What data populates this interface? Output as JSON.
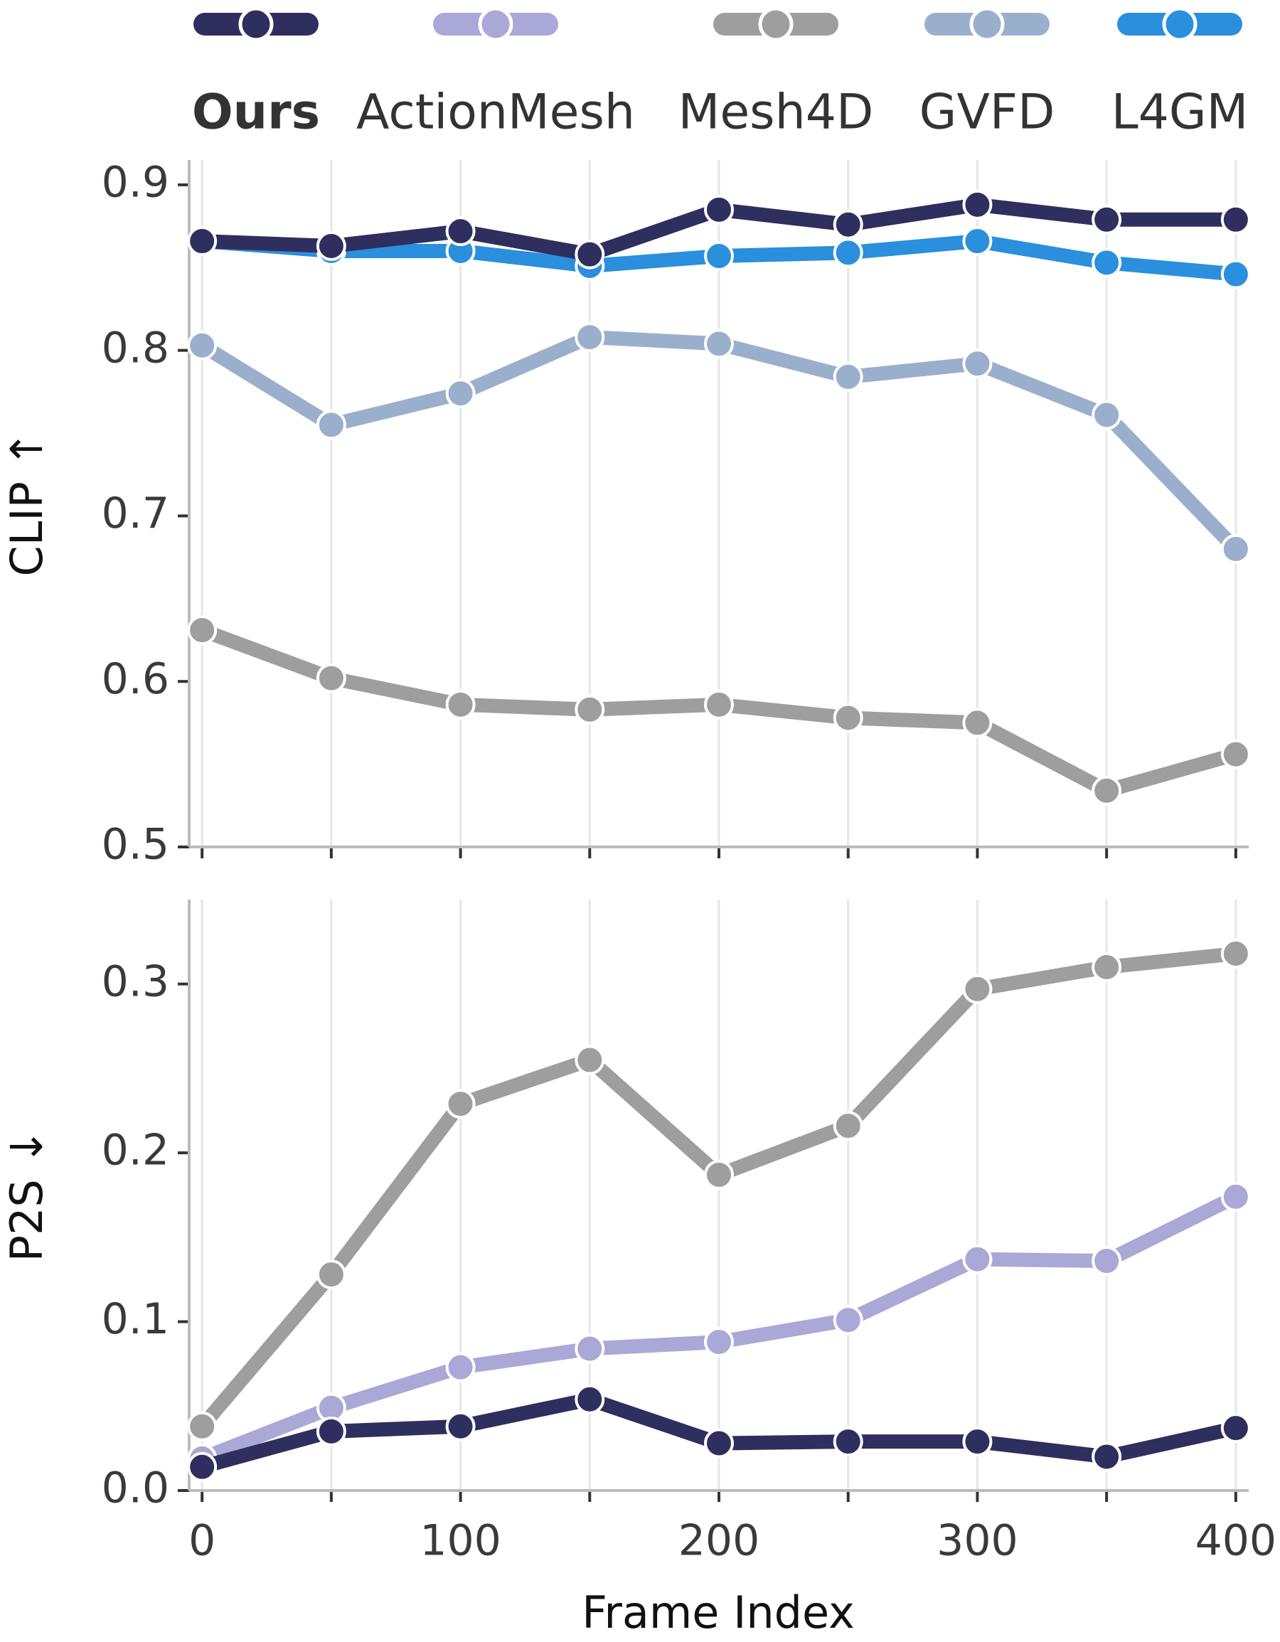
{
  "legend": [
    {
      "name": "Ours",
      "color": "#2e2f5e",
      "bold": true
    },
    {
      "name": "ActionMesh",
      "color": "#a9a8d6",
      "bold": false
    },
    {
      "name": "Mesh4D",
      "color": "#9e9e9e",
      "bold": false
    },
    {
      "name": "GVFD",
      "color": "#9aafcc",
      "bold": false
    },
    {
      "name": "L4GM",
      "color": "#2a8fdc",
      "bold": false
    }
  ],
  "x_label": "Frame Index",
  "chart_data": [
    {
      "type": "line",
      "y_label": "CLIP ↑",
      "x": [
        0,
        50,
        100,
        150,
        200,
        250,
        300,
        350,
        400
      ],
      "xlim": [
        -5,
        405
      ],
      "xticks_unlabeled": [
        0,
        50,
        100,
        150,
        200,
        250,
        300,
        350,
        400
      ],
      "ylim": [
        0.5,
        0.915
      ],
      "yticks": [
        {
          "value": 0.5,
          "label": "0.5"
        },
        0.6,
        0.7,
        0.8,
        0.9
      ],
      "series": [
        {
          "name": "Mesh4D",
          "values": [
            0.631,
            0.602,
            0.586,
            0.583,
            0.586,
            0.578,
            0.575,
            0.534,
            0.556
          ]
        },
        {
          "name": "GVFD",
          "values": [
            0.803,
            0.755,
            0.774,
            0.808,
            0.804,
            0.784,
            0.792,
            0.761,
            0.68
          ]
        },
        {
          "name": "L4GM",
          "values": [
            0.866,
            0.86,
            0.86,
            0.851,
            0.857,
            0.859,
            0.866,
            0.853,
            0.846
          ]
        },
        {
          "name": "Ours",
          "values": [
            0.866,
            0.863,
            0.872,
            0.858,
            0.885,
            0.876,
            0.888,
            0.879,
            0.879
          ]
        }
      ]
    },
    {
      "type": "line",
      "y_label": "P2S ↓",
      "x": [
        0,
        50,
        100,
        150,
        200,
        250,
        300,
        350,
        400
      ],
      "xlim": [
        -5,
        405
      ],
      "xticks": [
        0,
        100,
        200,
        300,
        400
      ],
      "xticks_unlabeled": [
        50,
        150,
        250,
        350
      ],
      "ylim": [
        0,
        0.35
      ],
      "yticks": [
        {
          "value": 0,
          "label": "0.0"
        },
        0.1,
        0.2,
        0.3
      ],
      "series": [
        {
          "name": "Mesh4D",
          "values": [
            0.038,
            0.128,
            0.229,
            0.255,
            0.187,
            0.216,
            0.297,
            0.31,
            0.318
          ]
        },
        {
          "name": "ActionMesh",
          "values": [
            0.019,
            0.049,
            0.073,
            0.084,
            0.088,
            0.101,
            0.137,
            0.136,
            0.174
          ]
        },
        {
          "name": "Ours",
          "values": [
            0.014,
            0.035,
            0.038,
            0.054,
            0.028,
            0.029,
            0.029,
            0.02,
            0.037
          ]
        }
      ]
    }
  ]
}
